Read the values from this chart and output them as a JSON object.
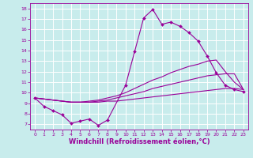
{
  "xlabel": "Windchill (Refroidissement éolien,°C)",
  "bg_color": "#c8ecec",
  "line_color": "#990099",
  "grid_color": "#ffffff",
  "x_data": [
    0,
    1,
    2,
    3,
    4,
    5,
    6,
    7,
    8,
    9,
    10,
    11,
    12,
    13,
    14,
    15,
    16,
    17,
    18,
    19,
    20,
    21,
    22,
    23
  ],
  "y_main": [
    9.5,
    8.7,
    8.3,
    7.9,
    7.1,
    7.3,
    7.5,
    6.9,
    7.4,
    null,
    10.7,
    13.9,
    17.1,
    17.9,
    16.5,
    16.7,
    16.3,
    15.7,
    14.9,
    13.5,
    11.9,
    10.7,
    10.3,
    10.1
  ],
  "y_line1": [
    9.5,
    9.4,
    9.3,
    9.2,
    9.1,
    9.1,
    9.1,
    9.1,
    9.2,
    9.2,
    9.3,
    9.4,
    9.5,
    9.6,
    9.7,
    9.8,
    9.9,
    10.0,
    10.1,
    10.2,
    10.3,
    10.4,
    10.4,
    10.3
  ],
  "y_line2": [
    9.5,
    9.4,
    9.3,
    9.2,
    9.1,
    9.1,
    9.1,
    9.2,
    9.3,
    9.5,
    9.7,
    9.9,
    10.1,
    10.4,
    10.6,
    10.8,
    11.0,
    11.2,
    11.4,
    11.6,
    11.7,
    11.8,
    11.8,
    10.3
  ],
  "y_line3": [
    9.5,
    9.4,
    9.3,
    9.2,
    9.1,
    9.1,
    9.2,
    9.3,
    9.5,
    9.7,
    10.0,
    10.4,
    10.8,
    11.2,
    11.5,
    11.9,
    12.2,
    12.5,
    12.7,
    13.0,
    13.1,
    12.0,
    11.0,
    10.3
  ],
  "xlim": [
    -0.5,
    23.5
  ],
  "ylim": [
    6.5,
    18.5
  ],
  "yticks": [
    7,
    8,
    9,
    10,
    11,
    12,
    13,
    14,
    15,
    16,
    17,
    18
  ],
  "xticks": [
    0,
    1,
    2,
    3,
    4,
    5,
    6,
    7,
    8,
    9,
    10,
    11,
    12,
    13,
    14,
    15,
    16,
    17,
    18,
    19,
    20,
    21,
    22,
    23
  ],
  "tick_fontsize": 4.5,
  "xlabel_fontsize": 6,
  "marker": "D",
  "markersize": 2.0,
  "linewidth": 0.8
}
